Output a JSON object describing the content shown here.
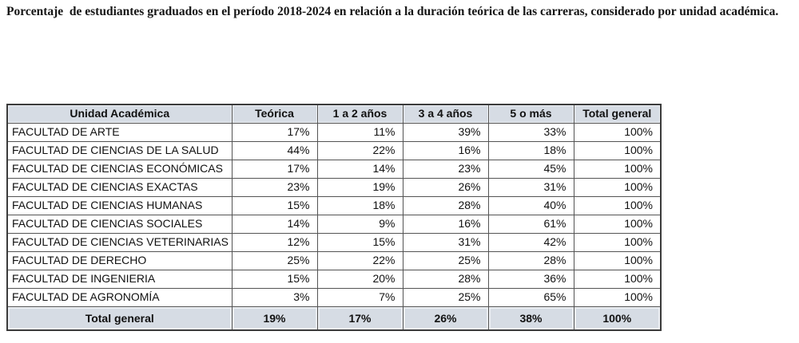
{
  "title": "Porcentaje  de estudiantes graduados en el período 2018-2024 en relación a la duración teórica de las carreras, considerado por unidad académica.",
  "table": {
    "columns": [
      "Unidad Académica",
      "Teórica",
      "1 a 2 años",
      "3 a 4 años",
      "5 o más",
      "Total general"
    ],
    "rows": [
      [
        "FACULTAD DE ARTE",
        "17%",
        "11%",
        "39%",
        "33%",
        "100%"
      ],
      [
        "FACULTAD DE CIENCIAS DE LA SALUD",
        "44%",
        "22%",
        "16%",
        "18%",
        "100%"
      ],
      [
        "FACULTAD DE CIENCIAS ECONÓMICAS",
        "17%",
        "14%",
        "23%",
        "45%",
        "100%"
      ],
      [
        "FACULTAD DE CIENCIAS EXACTAS",
        "23%",
        "19%",
        "26%",
        "31%",
        "100%"
      ],
      [
        "FACULTAD DE CIENCIAS HUMANAS",
        "15%",
        "18%",
        "28%",
        "40%",
        "100%"
      ],
      [
        "FACULTAD DE CIENCIAS SOCIALES",
        "14%",
        "9%",
        "16%",
        "61%",
        "100%"
      ],
      [
        "FACULTAD DE CIENCIAS VETERINARIAS",
        "12%",
        "15%",
        "31%",
        "42%",
        "100%"
      ],
      [
        "FACULTAD DE DERECHO",
        "25%",
        "22%",
        "25%",
        "28%",
        "100%"
      ],
      [
        "FACULTAD DE INGENIERIA",
        "15%",
        "20%",
        "28%",
        "36%",
        "100%"
      ],
      [
        "FACULTAD DE AGRONOMÍA",
        "3%",
        "7%",
        "25%",
        "65%",
        "100%"
      ]
    ],
    "total_row": [
      "Total general",
      "19%",
      "17%",
      "26%",
      "38%",
      "100%"
    ]
  },
  "colors": {
    "header_bg": "#d6dce4",
    "grid_line": "#545454",
    "outer_border": "#3b3b3b",
    "text": "#111111"
  }
}
